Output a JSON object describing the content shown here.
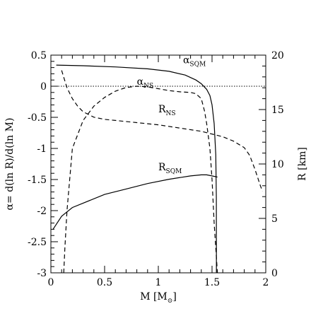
{
  "chart_data": {
    "type": "line",
    "xlabel": "M [M",
    "xlabel_unit": "⊙",
    "xlabel_close": "]",
    "ylabel_left": "α= d(ln R)/d(ln M)",
    "ylabel_right": "R [km]",
    "xlim": [
      0,
      2
    ],
    "ylim_left": [
      -3,
      0.5
    ],
    "ylim_right": [
      0,
      20
    ],
    "x_ticks": [
      "0",
      "0.5",
      "1",
      "1.5",
      "2"
    ],
    "y_left_ticks": [
      "0.5",
      "0",
      "-0.5",
      "-1",
      "-1.5",
      "-2",
      "-2.5",
      "-3"
    ],
    "y_right_ticks": [
      "20",
      "15",
      "10",
      "5",
      "0"
    ],
    "reference_line": {
      "y": 0,
      "style": "dotted"
    },
    "series": [
      {
        "name": "α_SQM",
        "axis": "left",
        "style": "solid",
        "x": [
          0.05,
          0.3,
          0.6,
          0.9,
          1.1,
          1.25,
          1.35,
          1.4,
          1.45,
          1.48,
          1.5,
          1.52,
          1.535,
          1.54,
          1.541
        ],
        "y": [
          0.34,
          0.33,
          0.31,
          0.28,
          0.24,
          0.18,
          0.1,
          0.04,
          -0.05,
          -0.15,
          -0.3,
          -0.6,
          -1.1,
          -1.8,
          -3.0
        ]
      },
      {
        "name": "α_NS",
        "axis": "left",
        "style": "dashed",
        "x": [
          0.12,
          0.13,
          0.15,
          0.2,
          0.3,
          0.4,
          0.5,
          0.6,
          0.7,
          0.8,
          0.9,
          1.0,
          1.1,
          1.2,
          1.3,
          1.35,
          1.4,
          1.43,
          1.45,
          1.48,
          1.5,
          1.52,
          1.55
        ],
        "y": [
          -3.0,
          -2.6,
          -2.0,
          -1.0,
          -0.55,
          -0.32,
          -0.18,
          -0.08,
          -0.02,
          0.0,
          -0.01,
          -0.04,
          -0.07,
          -0.09,
          -0.1,
          -0.12,
          -0.2,
          -0.4,
          -0.6,
          -1.0,
          -1.5,
          -2.2,
          -3.0
        ]
      },
      {
        "name": "R_NS",
        "axis": "right",
        "style": "dashed",
        "x": [
          0.1,
          0.15,
          0.2,
          0.25,
          0.3,
          0.4,
          0.5,
          0.6,
          0.8,
          1.0,
          1.2,
          1.4,
          1.6,
          1.7,
          1.8,
          1.85,
          1.9,
          1.95,
          1.97
        ],
        "y": [
          18.6,
          17.0,
          16.0,
          15.3,
          14.8,
          14.3,
          14.1,
          14.0,
          13.8,
          13.6,
          13.3,
          13.0,
          12.5,
          12.1,
          11.5,
          10.8,
          9.5,
          8.0,
          7.5
        ]
      },
      {
        "name": "R_SQM",
        "axis": "right",
        "style": "solid",
        "x": [
          0.02,
          0.1,
          0.2,
          0.3,
          0.5,
          0.7,
          0.9,
          1.1,
          1.3,
          1.4,
          1.45,
          1.5,
          1.55
        ],
        "y": [
          4.0,
          5.2,
          6.0,
          6.4,
          7.2,
          7.7,
          8.2,
          8.6,
          8.9,
          9.0,
          9.0,
          8.9,
          8.8
        ]
      }
    ],
    "annotations": [
      {
        "base": "α",
        "sub": "SQM",
        "x": 1.23,
        "y_left": 0.37
      },
      {
        "base": "α",
        "sub": "NS",
        "x": 0.8,
        "y_left": 0.02
      },
      {
        "base": "R",
        "sub": "NS",
        "x": 1.0,
        "y_left": -0.42
      },
      {
        "base": "R",
        "sub": "SQM",
        "x": 1.0,
        "y_left": -1.35
      }
    ]
  }
}
